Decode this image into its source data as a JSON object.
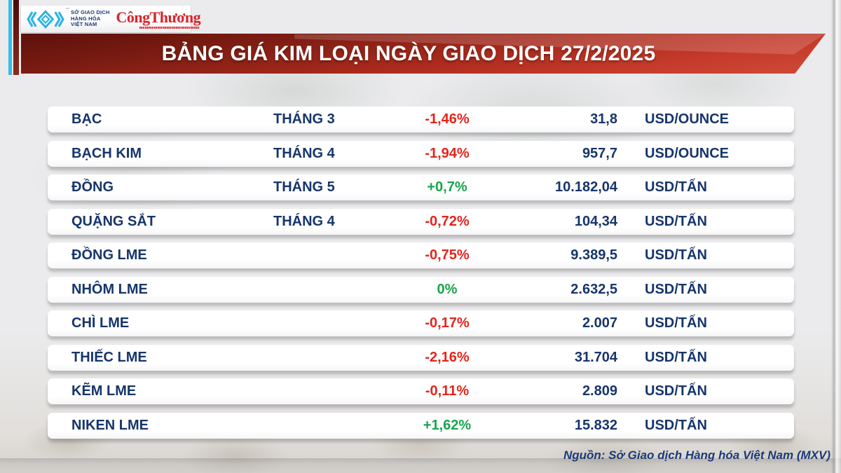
{
  "colors": {
    "navy": "#17356b",
    "red_negative": "#e5241d",
    "green_positive": "#18a54c",
    "banner_red_dark": "#5c110b",
    "banner_red_light": "#d04a38",
    "logo_cyan": "#2bb3e6",
    "congthuong_red": "#d7242b",
    "background": "#ebebed"
  },
  "logo": {
    "mxv_icon": "mxv-chevron-diamond",
    "mxv_name_lines": [
      "SỞ GIAO DỊCH",
      "HÀNG HÓA",
      "VIỆT NAM"
    ],
    "trademark": "™",
    "congthuong": "CôngThương"
  },
  "banner": {
    "title": "BẢNG GIÁ KIM LOẠI NGÀY GIAO DỊCH 27/2/2025"
  },
  "table": {
    "rows": [
      {
        "name": "BẠC",
        "month": "THÁNG 3",
        "change": "-1,46%",
        "direction": "down",
        "price": "31,8",
        "unit": "USD/OUNCE"
      },
      {
        "name": "BẠCH KIM",
        "month": "THÁNG 4",
        "change": "-1,94%",
        "direction": "down",
        "price": "957,7",
        "unit": "USD/OUNCE"
      },
      {
        "name": "ĐỒNG",
        "month": "THÁNG 5",
        "change": "+0,7%",
        "direction": "up",
        "price": "10.182,04",
        "unit": "USD/TẤN"
      },
      {
        "name": "QUẶNG SẮT",
        "month": "THÁNG 4",
        "change": "-0,72%",
        "direction": "down",
        "price": "104,34",
        "unit": "USD/TẤN"
      },
      {
        "name": "ĐỒNG LME",
        "month": "",
        "change": "-0,75%",
        "direction": "down",
        "price": "9.389,5",
        "unit": "USD/TẤN"
      },
      {
        "name": "NHÔM LME",
        "month": "",
        "change": "0%",
        "direction": "up",
        "price": "2.632,5",
        "unit": "USD/TẤN"
      },
      {
        "name": "CHÌ LME",
        "month": "",
        "change": "-0,17%",
        "direction": "down",
        "price": "2.007",
        "unit": "USD/TẤN"
      },
      {
        "name": "THIẾC LME",
        "month": "",
        "change": "-2,16%",
        "direction": "down",
        "price": "31.704",
        "unit": "USD/TẤN"
      },
      {
        "name": "KẼM LME",
        "month": "",
        "change": "-0,11%",
        "direction": "down",
        "price": "2.809",
        "unit": "USD/TẤN"
      },
      {
        "name": "NIKEN LME",
        "month": "",
        "change": "+1,62%",
        "direction": "up",
        "price": "15.832",
        "unit": "USD/TẤN"
      }
    ]
  },
  "footer": {
    "source": "Nguồn: Sở Giao dịch Hàng hóa Việt Nam (MXV)"
  },
  "chart_data": {
    "type": "table",
    "title": "BẢNG GIÁ KIM LOẠI NGÀY GIAO DỊCH 27/2/2025",
    "columns": [
      "commodity",
      "contract_month",
      "change_pct",
      "price",
      "unit"
    ],
    "rows": [
      [
        "BẠC",
        "THÁNG 3",
        "-1,46%",
        "31,8",
        "USD/OUNCE"
      ],
      [
        "BẠCH KIM",
        "THÁNG 4",
        "-1,94%",
        "957,7",
        "USD/OUNCE"
      ],
      [
        "ĐỒNG",
        "THÁNG 5",
        "+0,7%",
        "10.182,04",
        "USD/TẤN"
      ],
      [
        "QUẶNG SẮT",
        "THÁNG 4",
        "-0,72%",
        "104,34",
        "USD/TẤN"
      ],
      [
        "ĐỒNG LME",
        "",
        "-0,75%",
        "9.389,5",
        "USD/TẤN"
      ],
      [
        "NHÔM LME",
        "",
        "0%",
        "2.632,5",
        "USD/TẤN"
      ],
      [
        "CHÌ LME",
        "",
        "-0,17%",
        "2.007",
        "USD/TẤN"
      ],
      [
        "THIẾC LME",
        "",
        "-2,16%",
        "31.704",
        "USD/TẤN"
      ],
      [
        "KẼM LME",
        "",
        "-0,11%",
        "2.809",
        "USD/TẤN"
      ],
      [
        "NIKEN LME",
        "",
        "+1,62%",
        "15.832",
        "USD/TẤN"
      ]
    ],
    "source_note": "Nguồn: Sở Giao dịch Hàng hóa Việt Nam (MXV)"
  }
}
